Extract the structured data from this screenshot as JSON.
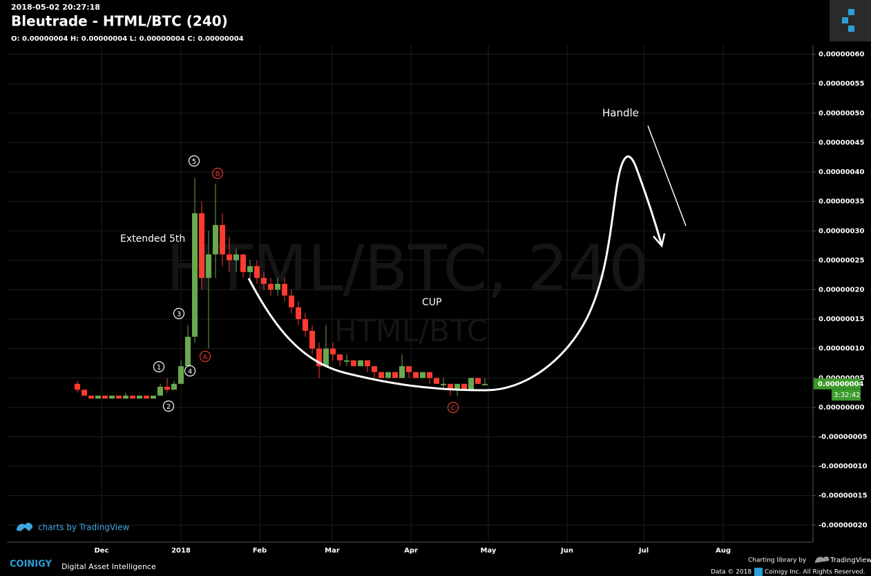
{
  "chart_data": {
    "type": "candlestick",
    "timestamp": "2018-05-02 20:27:18",
    "title": "Bleutrade - HTML/BTC (240)",
    "ohlc_line": "O: 0.00000004 H: 0.00000004 L: 0.00000004 C: 0.00000004",
    "watermark": "HTML/BTC, 240",
    "watermark_sub": "HTML/BTC",
    "up_color": "#6aa84f",
    "down_color": "#ff3b2f",
    "grid": true,
    "ylim": [
      -2.29e-07,
      6.16e-07
    ],
    "yticks": [
      {
        "value": 6e-07,
        "label": "0.00000060"
      },
      {
        "value": 5.5e-07,
        "label": "0.00000055"
      },
      {
        "value": 5e-07,
        "label": "0.00000050"
      },
      {
        "value": 4.5e-07,
        "label": "0.00000045"
      },
      {
        "value": 4e-07,
        "label": "0.00000040"
      },
      {
        "value": 3.5e-07,
        "label": "0.00000035"
      },
      {
        "value": 3e-07,
        "label": "0.00000030"
      },
      {
        "value": 2.5e-07,
        "label": "0.00000025"
      },
      {
        "value": 2e-07,
        "label": "0.00000020"
      },
      {
        "value": 1.5e-07,
        "label": "0.00000015"
      },
      {
        "value": 1e-07,
        "label": "0.00000010"
      },
      {
        "value": 5e-08,
        "label": "0.00000005"
      },
      {
        "value": 0,
        "label": "0.00000000"
      },
      {
        "value": -5e-08,
        "label": "-0.00000005"
      },
      {
        "value": -1e-07,
        "label": "-0.00000010"
      },
      {
        "value": -1.5e-07,
        "label": "-0.00000015"
      },
      {
        "value": -2e-07,
        "label": "-0.00000020"
      }
    ],
    "x_labels": [
      "Dec",
      "2018",
      "Feb",
      "Mar",
      "Apr",
      "May",
      "Jun",
      "Jul",
      "Aug"
    ],
    "last_price": {
      "value": 4e-08,
      "label": "0.00000004"
    },
    "countdown": "3:32:42",
    "open": [
      4e-08,
      3e-08,
      2e-08,
      1.5e-08,
      2e-08,
      1.5e-08,
      2e-08,
      1.5e-08,
      2e-08,
      1.5e-08,
      2e-08,
      1.5e-08,
      2e-08,
      3.5e-08,
      3e-08,
      4e-08,
      7e-08,
      1.2e-07,
      3.3e-07,
      2.2e-07,
      2.6e-07,
      3.1e-07,
      2.6e-07,
      2.5e-07,
      2.6e-07,
      2.3e-07,
      2.4e-07,
      2.2e-07,
      2.1e-07,
      2e-07,
      2.1e-07,
      1.9e-07,
      1.7e-07,
      1.5e-07,
      1.3e-07,
      1e-07,
      7e-08,
      1e-07,
      9e-08,
      8e-08,
      8e-08,
      7e-08,
      8e-08,
      7e-08,
      6e-08,
      5e-08,
      6e-08,
      5e-08,
      7e-08,
      6e-08,
      5e-08,
      6e-08,
      5e-08,
      4e-08,
      4e-08,
      3e-08,
      4e-08,
      3e-08,
      5e-08,
      4e-08
    ],
    "high": [
      4.5e-08,
      3e-08,
      2e-08,
      2e-08,
      2e-08,
      2e-08,
      2e-08,
      2.5e-08,
      2e-08,
      2e-08,
      2e-08,
      2e-08,
      4e-08,
      5e-08,
      4.5e-08,
      8e-08,
      1.4e-07,
      3.9e-07,
      3.5e-07,
      3e-07,
      3.8e-07,
      3.3e-07,
      2.9e-07,
      2.7e-07,
      2.6e-07,
      2.5e-07,
      2.5e-07,
      2.3e-07,
      2.2e-07,
      2.2e-07,
      2.2e-07,
      2e-07,
      1.8e-07,
      1.6e-07,
      1.4e-07,
      1.1e-07,
      1.4e-07,
      1.1e-07,
      9e-08,
      9e-08,
      8e-08,
      8e-08,
      8e-08,
      7e-08,
      6e-08,
      6e-08,
      6e-08,
      9e-08,
      7e-08,
      6e-08,
      6e-08,
      6e-08,
      5e-08,
      5e-08,
      4e-08,
      4e-08,
      4e-08,
      5e-08,
      5e-08,
      5e-08
    ],
    "low": [
      2.5e-08,
      2e-08,
      1.5e-08,
      1.5e-08,
      1.5e-08,
      1.5e-08,
      1.5e-08,
      1.5e-08,
      1.5e-08,
      1.5e-08,
      1.5e-08,
      1.5e-08,
      2e-08,
      2.5e-08,
      3e-08,
      4e-08,
      7e-08,
      1.1e-07,
      2e-07,
      1e-07,
      2.2e-07,
      2.4e-07,
      2.3e-07,
      2.3e-07,
      2.2e-07,
      2.2e-07,
      2.1e-07,
      2e-07,
      1.9e-07,
      1.9e-07,
      1.8e-07,
      1.6e-07,
      1.4e-07,
      1.2e-07,
      9e-08,
      5e-08,
      7e-08,
      8e-08,
      7e-08,
      7e-08,
      7e-08,
      7e-08,
      6e-08,
      5e-08,
      5e-08,
      5e-08,
      5e-08,
      5e-08,
      5e-08,
      5e-08,
      5e-08,
      4e-08,
      4e-08,
      3e-08,
      2e-08,
      2e-08,
      3e-08,
      3e-08,
      4e-08,
      4e-08
    ],
    "close": [
      3e-08,
      2e-08,
      1.5e-08,
      2e-08,
      1.5e-08,
      2e-08,
      1.5e-08,
      2e-08,
      1.5e-08,
      2e-08,
      1.5e-08,
      2e-08,
      3.5e-08,
      3e-08,
      4e-08,
      7e-08,
      1.2e-07,
      3.3e-07,
      2.2e-07,
      2.6e-07,
      3.1e-07,
      2.6e-07,
      2.5e-07,
      2.6e-07,
      2.3e-07,
      2.4e-07,
      2.2e-07,
      2.1e-07,
      2e-07,
      2.1e-07,
      1.9e-07,
      1.7e-07,
      1.5e-07,
      1.3e-07,
      1e-07,
      7e-08,
      1e-07,
      9e-08,
      8e-08,
      8e-08,
      7e-08,
      8e-08,
      7e-08,
      6e-08,
      5e-08,
      6e-08,
      5e-08,
      7e-08,
      6e-08,
      5e-08,
      6e-08,
      5e-08,
      4e-08,
      4e-08,
      3e-08,
      4e-08,
      3e-08,
      5e-08,
      4e-08,
      4e-08
    ],
    "annotations": [
      "Handle",
      "Extended 5th",
      "CUP"
    ],
    "waves": [
      "1",
      "2",
      "3",
      "4",
      "5"
    ],
    "corrections": [
      "A",
      "B",
      "C"
    ]
  },
  "footer": {
    "tv_credit": "charts by TradingView",
    "brand": "COINIGY",
    "tagline": "Digital Asset Intelligence",
    "library_by": "Charting library by",
    "library": "TradingView",
    "data_credit": "Data © 2018",
    "rights": "Coinigy Inc. All Rights Reserved."
  }
}
